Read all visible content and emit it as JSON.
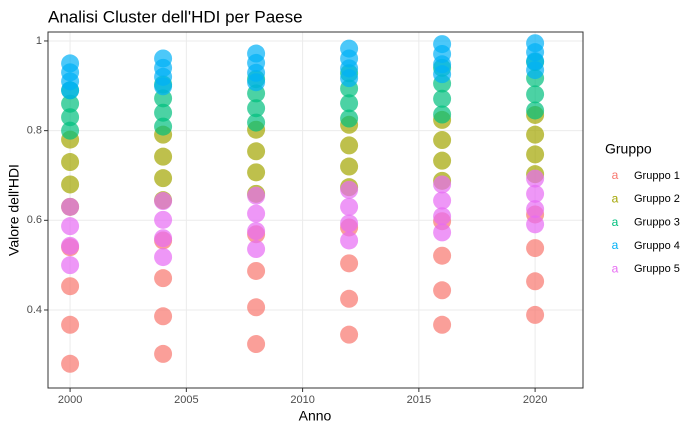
{
  "chart_data": {
    "type": "scatter",
    "title": "Analisi Cluster dell'HDI per Paese",
    "x_label": "Anno",
    "y_label": "Valore dell'HDI",
    "legend_title": "Gruppo",
    "legend_position": "right",
    "grid": true,
    "xlim": [
      1999.05,
      2022.06
    ],
    "xticks": [
      2000,
      2005,
      2010,
      2015,
      2020
    ],
    "ylim": [
      0.226,
      1.02
    ],
    "yticks": [
      0.4,
      0.6,
      0.8,
      1.0
    ],
    "x": [
      2000,
      2000,
      2000,
      2000,
      2004,
      2004,
      2004,
      2004,
      2008,
      2008,
      2008,
      2008,
      2012,
      2012,
      2012,
      2012,
      2016,
      2016,
      2016,
      2016,
      2020,
      2020,
      2020,
      2020
    ],
    "series": [
      {
        "name": "Gruppo 1",
        "color": "#F8766D",
        "values": [
          0.28,
          0.367,
          0.453,
          0.54,
          0.302,
          0.386,
          0.471,
          0.555,
          0.324,
          0.406,
          0.487,
          0.569,
          0.345,
          0.425,
          0.504,
          0.584,
          0.367,
          0.444,
          0.521,
          0.598,
          0.389,
          0.464,
          0.538,
          0.613
        ]
      },
      {
        "name": "Gruppo 2",
        "color": "#A3A500",
        "values": [
          0.63,
          0.68,
          0.73,
          0.78,
          0.645,
          0.694,
          0.742,
          0.791,
          0.659,
          0.707,
          0.754,
          0.802,
          0.674,
          0.72,
          0.767,
          0.813,
          0.688,
          0.733,
          0.779,
          0.824,
          0.703,
          0.747,
          0.791,
          0.835
        ]
      },
      {
        "name": "Gruppo 3",
        "color": "#00BF7D",
        "values": [
          0.8,
          0.83,
          0.86,
          0.89,
          0.809,
          0.84,
          0.872,
          0.903,
          0.818,
          0.85,
          0.883,
          0.915,
          0.827,
          0.861,
          0.894,
          0.928,
          0.836,
          0.871,
          0.905,
          0.94,
          0.845,
          0.881,
          0.917,
          0.953
        ]
      },
      {
        "name": "Gruppo 4",
        "color": "#00B0F6",
        "values": [
          0.89,
          0.91,
          0.93,
          0.95,
          0.899,
          0.92,
          0.94,
          0.961,
          0.908,
          0.929,
          0.951,
          0.972,
          0.917,
          0.939,
          0.961,
          0.983,
          0.926,
          0.948,
          0.971,
          0.993,
          0.935,
          0.955,
          0.975,
          0.995
        ]
      },
      {
        "name": "Gruppo 5",
        "color": "#E76BF3",
        "values": [
          0.5,
          0.543,
          0.587,
          0.63,
          0.518,
          0.56,
          0.601,
          0.643,
          0.536,
          0.576,
          0.615,
          0.655,
          0.555,
          0.593,
          0.63,
          0.668,
          0.573,
          0.609,
          0.644,
          0.68,
          0.591,
          0.625,
          0.659,
          0.693
        ]
      }
    ]
  }
}
